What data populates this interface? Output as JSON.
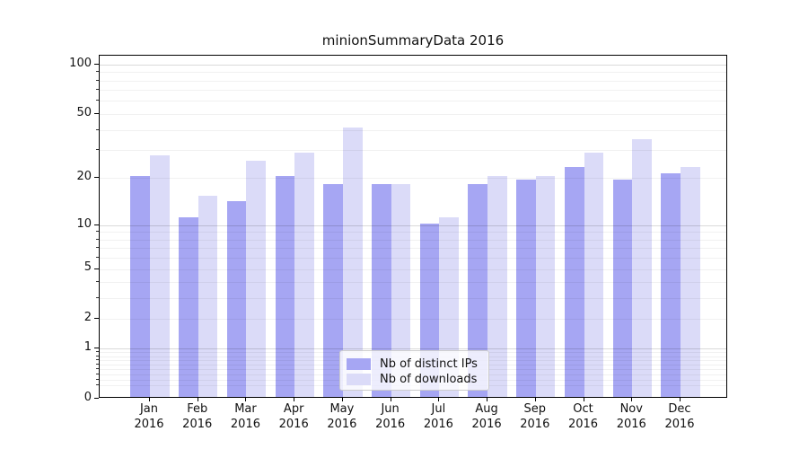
{
  "title": "minionSummaryData 2016",
  "legend": {
    "items": [
      {
        "label": "Nb of distinct IPs",
        "color": "#a6a6f3"
      },
      {
        "label": "Nb of downloads",
        "color": "#dbdbf8"
      }
    ]
  },
  "chart_data": {
    "type": "bar",
    "title": "minionSummaryData 2016",
    "categories": [
      "Jan 2016",
      "Feb 2016",
      "Mar 2016",
      "Apr 2016",
      "May 2016",
      "Jun 2016",
      "Jul 2016",
      "Aug 2016",
      "Sep 2016",
      "Oct 2016",
      "Nov 2016",
      "Dec 2016"
    ],
    "series": [
      {
        "name": "Nb of distinct IPs",
        "color": "#a6a6f3",
        "values": [
          20,
          11,
          14,
          20,
          18,
          18,
          10,
          18,
          19,
          23,
          19,
          21
        ]
      },
      {
        "name": "Nb of downloads",
        "color": "#dbdbf8",
        "values": [
          27,
          15,
          25,
          28,
          40,
          18,
          11,
          20,
          20,
          28,
          34,
          23
        ]
      }
    ],
    "xlabel": "",
    "ylabel": "",
    "yscale": "log1p",
    "yticks": [
      0,
      1,
      2,
      5,
      10,
      20,
      50,
      100
    ],
    "ylim": [
      0,
      113
    ],
    "grid": true,
    "legend_position": "lower center"
  }
}
